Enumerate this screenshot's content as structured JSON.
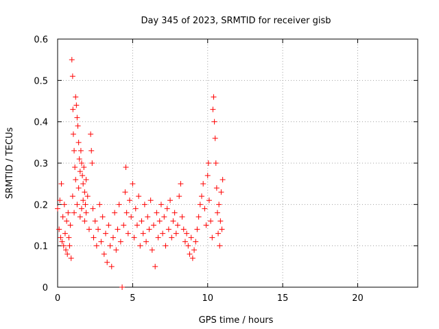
{
  "chart_data": {
    "type": "scatter",
    "title": "Day 345 of 2023, SRMTID for receiver gisb",
    "xlabel": "GPS time / hours",
    "ylabel": "SRMTID / TECUs",
    "xlim": [
      0,
      24
    ],
    "ylim": [
      0,
      0.6
    ],
    "xticks": [
      0,
      5,
      10,
      15,
      20
    ],
    "yticks": [
      0,
      0.1,
      0.2,
      0.3,
      0.4,
      0.5,
      0.6
    ],
    "xtick_labels": [
      "0",
      "5",
      "10",
      "15",
      "20"
    ],
    "ytick_labels": [
      "0",
      "0.1",
      "0.2",
      "0.3",
      "0.4",
      "0.5",
      "0.6"
    ],
    "grid": true,
    "marker": "+",
    "color": "#ff0000",
    "series": [
      {
        "name": "SRMTID",
        "points": [
          [
            0.0,
            0.19
          ],
          [
            0.1,
            0.14
          ],
          [
            0.15,
            0.21
          ],
          [
            0.2,
            0.12
          ],
          [
            0.25,
            0.25
          ],
          [
            0.3,
            0.11
          ],
          [
            0.35,
            0.17
          ],
          [
            0.4,
            0.1
          ],
          [
            0.45,
            0.2
          ],
          [
            0.5,
            0.13
          ],
          [
            0.55,
            0.09
          ],
          [
            0.6,
            0.16
          ],
          [
            0.65,
            0.08
          ],
          [
            0.7,
            0.18
          ],
          [
            0.75,
            0.12
          ],
          [
            0.8,
            0.1
          ],
          [
            0.85,
            0.15
          ],
          [
            0.9,
            0.07
          ],
          [
            0.95,
            0.55
          ],
          [
            1.0,
            0.51
          ],
          [
            1.02,
            0.43
          ],
          [
            1.05,
            0.37
          ],
          [
            1.1,
            0.33
          ],
          [
            1.15,
            0.29
          ],
          [
            1.2,
            0.46
          ],
          [
            1.25,
            0.44
          ],
          [
            1.3,
            0.41
          ],
          [
            1.35,
            0.39
          ],
          [
            1.4,
            0.35
          ],
          [
            1.45,
            0.31
          ],
          [
            1.5,
            0.28
          ],
          [
            1.55,
            0.33
          ],
          [
            1.6,
            0.3
          ],
          [
            1.65,
            0.27
          ],
          [
            1.7,
            0.25
          ],
          [
            1.75,
            0.29
          ],
          [
            1.8,
            0.23
          ],
          [
            1.85,
            0.2
          ],
          [
            1.9,
            0.26
          ],
          [
            1.0,
            0.22
          ],
          [
            1.1,
            0.18
          ],
          [
            1.2,
            0.26
          ],
          [
            1.3,
            0.2
          ],
          [
            1.4,
            0.24
          ],
          [
            1.5,
            0.17
          ],
          [
            1.6,
            0.19
          ],
          [
            1.7,
            0.21
          ],
          [
            1.8,
            0.16
          ],
          [
            1.9,
            0.18
          ],
          [
            2.0,
            0.22
          ],
          [
            2.1,
            0.14
          ],
          [
            2.2,
            0.37
          ],
          [
            2.25,
            0.33
          ],
          [
            2.3,
            0.3
          ],
          [
            2.35,
            0.19
          ],
          [
            2.4,
            0.12
          ],
          [
            2.5,
            0.16
          ],
          [
            2.6,
            0.1
          ],
          [
            2.7,
            0.14
          ],
          [
            2.8,
            0.2
          ],
          [
            2.9,
            0.11
          ],
          [
            3.0,
            0.17
          ],
          [
            3.1,
            0.08
          ],
          [
            3.2,
            0.13
          ],
          [
            3.3,
            0.06
          ],
          [
            3.4,
            0.15
          ],
          [
            3.5,
            0.1
          ],
          [
            3.6,
            0.05
          ],
          [
            3.7,
            0.12
          ],
          [
            3.8,
            0.18
          ],
          [
            3.9,
            0.09
          ],
          [
            4.0,
            0.14
          ],
          [
            4.1,
            0.2
          ],
          [
            4.2,
            0.11
          ],
          [
            4.3,
            0.0
          ],
          [
            4.4,
            0.15
          ],
          [
            4.5,
            0.23
          ],
          [
            4.55,
            0.29
          ],
          [
            4.6,
            0.18
          ],
          [
            4.7,
            0.13
          ],
          [
            4.8,
            0.21
          ],
          [
            4.9,
            0.17
          ],
          [
            5.0,
            0.25
          ],
          [
            5.1,
            0.12
          ],
          [
            5.2,
            0.19
          ],
          [
            5.3,
            0.15
          ],
          [
            5.4,
            0.22
          ],
          [
            5.5,
            0.1
          ],
          [
            5.6,
            0.16
          ],
          [
            5.7,
            0.13
          ],
          [
            5.8,
            0.2
          ],
          [
            5.9,
            0.11
          ],
          [
            6.0,
            0.17
          ],
          [
            6.1,
            0.14
          ],
          [
            6.2,
            0.21
          ],
          [
            6.3,
            0.09
          ],
          [
            6.4,
            0.15
          ],
          [
            6.5,
            0.05
          ],
          [
            6.6,
            0.18
          ],
          [
            6.7,
            0.12
          ],
          [
            6.8,
            0.16
          ],
          [
            6.9,
            0.2
          ],
          [
            7.0,
            0.13
          ],
          [
            7.1,
            0.17
          ],
          [
            7.2,
            0.1
          ],
          [
            7.3,
            0.19
          ],
          [
            7.4,
            0.14
          ],
          [
            7.5,
            0.21
          ],
          [
            7.6,
            0.12
          ],
          [
            7.7,
            0.16
          ],
          [
            7.8,
            0.18
          ],
          [
            7.9,
            0.13
          ],
          [
            8.0,
            0.15
          ],
          [
            8.1,
            0.22
          ],
          [
            8.2,
            0.25
          ],
          [
            8.3,
            0.17
          ],
          [
            8.4,
            0.14
          ],
          [
            8.5,
            0.11
          ],
          [
            8.6,
            0.13
          ],
          [
            8.7,
            0.1
          ],
          [
            8.8,
            0.08
          ],
          [
            8.9,
            0.12
          ],
          [
            9.0,
            0.07
          ],
          [
            9.1,
            0.09
          ],
          [
            9.2,
            0.11
          ],
          [
            9.3,
            0.14
          ],
          [
            9.4,
            0.17
          ],
          [
            9.5,
            0.2
          ],
          [
            9.6,
            0.22
          ],
          [
            9.7,
            0.25
          ],
          [
            9.8,
            0.19
          ],
          [
            9.9,
            0.15
          ],
          [
            10.0,
            0.27
          ],
          [
            10.05,
            0.3
          ],
          [
            10.1,
            0.21
          ],
          [
            10.2,
            0.16
          ],
          [
            10.3,
            0.12
          ],
          [
            10.35,
            0.43
          ],
          [
            10.4,
            0.46
          ],
          [
            10.45,
            0.4
          ],
          [
            10.5,
            0.36
          ],
          [
            10.55,
            0.3
          ],
          [
            10.6,
            0.24
          ],
          [
            10.65,
            0.18
          ],
          [
            10.7,
            0.13
          ],
          [
            10.75,
            0.2
          ],
          [
            10.8,
            0.1
          ],
          [
            10.85,
            0.16
          ],
          [
            10.9,
            0.23
          ],
          [
            10.95,
            0.14
          ],
          [
            11.0,
            0.26
          ]
        ]
      }
    ]
  }
}
